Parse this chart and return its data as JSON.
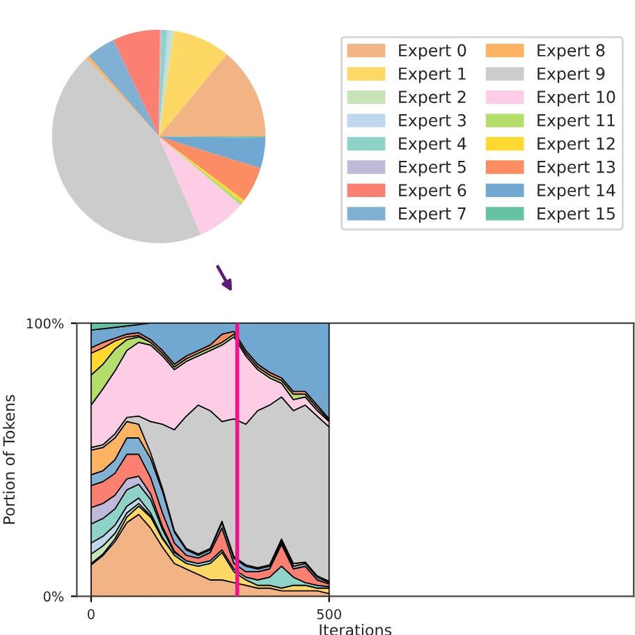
{
  "chart_data": [
    {
      "type": "pie",
      "categories": [
        "Expert 0",
        "Expert 1",
        "Expert 2",
        "Expert 3",
        "Expert 4",
        "Expert 5",
        "Expert 6",
        "Expert 7",
        "Expert 8",
        "Expert 9",
        "Expert 10",
        "Expert 11",
        "Expert 12",
        "Expert 13",
        "Expert 14",
        "Expert 15"
      ],
      "values": [
        14,
        8.7,
        0.5,
        0.5,
        0.9,
        0.2,
        7.2,
        4.4,
        0.5,
        44.6,
        7.4,
        0.5,
        0.4,
        5.4,
        4.6,
        0.2
      ],
      "colors": [
        "#f2b385",
        "#fdd865",
        "#c7e3b8",
        "#bdd7ee",
        "#8dd3c7",
        "#bebada",
        "#fb8072",
        "#80b1d3",
        "#fdb462",
        "#cccccc",
        "#fccde5",
        "#b3de69",
        "#ffd92f",
        "#fc8d62",
        "#70a8d1",
        "#66c2a5"
      ],
      "legend": "right"
    },
    {
      "type": "area",
      "stacked": true,
      "xlabel": "Iterations",
      "ylabel": "Portion of Tokens",
      "x": [
        0,
        25,
        50,
        75,
        100,
        125,
        150,
        175,
        200,
        225,
        250,
        275,
        300,
        325,
        350,
        375,
        400,
        425,
        450,
        475,
        500
      ],
      "xlim": [
        -30,
        1140
      ],
      "xticks": [
        0,
        500
      ],
      "ylim": [
        0,
        100
      ],
      "yticks": [
        {
          "value": 0,
          "label": "0%"
        },
        {
          "value": 100,
          "label": "100%"
        }
      ],
      "ref_lines": [
        {
          "axis": "x",
          "value": 307,
          "color": "#f0148c"
        }
      ],
      "series": [
        {
          "color": "#f2b385",
          "values": [
            11.5,
            15,
            20,
            27,
            30,
            25,
            18,
            12,
            10,
            8,
            6,
            6,
            5,
            4,
            3,
            3,
            2,
            2,
            2,
            2,
            1
          ]
        },
        {
          "color": "#fdd865",
          "values": [
            0.5,
            0.5,
            1,
            2,
            3,
            4,
            3,
            3,
            2,
            3,
            6,
            10,
            4,
            2,
            1,
            1,
            1,
            2,
            2,
            1,
            2
          ]
        },
        {
          "color": "#c7e3b8",
          "values": [
            3.5,
            3,
            2,
            1.5,
            1,
            0.5,
            null,
            null,
            null,
            null,
            null,
            null,
            null,
            null,
            null,
            null,
            null,
            null,
            null,
            null,
            null
          ]
        },
        {
          "color": "#bdd7ee",
          "values": [
            4,
            3.5,
            3,
            2.5,
            2,
            1,
            0.5,
            null,
            null,
            null,
            null,
            null,
            null,
            null,
            null,
            null,
            null,
            null,
            null,
            null,
            null
          ]
        },
        {
          "color": "#8dd3c7",
          "values": [
            7,
            6.5,
            6,
            6,
            5,
            5,
            3,
            1,
            1,
            1,
            1,
            1,
            1,
            1,
            2,
            3,
            8,
            3,
            1,
            1,
            0.5
          ]
        },
        {
          "color": "#bebada",
          "values": [
            6,
            5.5,
            5,
            4,
            3,
            2,
            1,
            0.5,
            null,
            null,
            null,
            null,
            null,
            null,
            null,
            null,
            null,
            null,
            null,
            null,
            null
          ]
        },
        {
          "color": "#fb8072",
          "values": [
            8,
            8,
            8,
            9,
            8,
            6,
            5,
            3,
            2,
            2,
            3,
            8,
            2,
            2,
            3,
            3,
            8,
            3,
            6,
            2,
            1
          ]
        },
        {
          "color": "#80b1d3",
          "values": [
            4,
            4,
            5,
            6,
            6,
            7,
            8,
            4,
            2,
            1,
            1,
            2,
            2,
            2,
            1,
            1,
            1,
            1,
            1,
            1,
            0.5
          ]
        },
        {
          "color": "#fdb462",
          "values": [
            9,
            8.5,
            8,
            6,
            5,
            2,
            1,
            0.5,
            0.5,
            0.5,
            0.5,
            0.5,
            0.5,
            0.5,
            0.5,
            0.5,
            1,
            1,
            0.5,
            0.5,
            0.5
          ]
        },
        {
          "color": "#cccccc",
          "values": [
            1,
            1,
            1.5,
            1.5,
            3,
            11.5,
            23.5,
            37,
            48.5,
            54.5,
            50.5,
            36.5,
            50.5,
            51.5,
            57.5,
            58.5,
            52,
            56,
            57.5,
            58.5,
            56.5
          ]
        },
        {
          "color": "#fccde5",
          "values": [
            15.5,
            20.5,
            23,
            24.5,
            27,
            28,
            25,
            22,
            20,
            18,
            22,
            28,
            30,
            25,
            15,
            10,
            5,
            4,
            3,
            2,
            2
          ]
        },
        {
          "color": "#b3de69",
          "values": [
            11,
            9,
            8,
            4,
            2,
            1,
            1,
            1,
            1,
            1,
            1,
            1,
            1,
            1,
            1,
            1,
            1,
            2,
            1,
            1,
            0.5
          ]
        },
        {
          "color": "#ffd92f",
          "values": [
            8,
            6,
            3,
            1,
            0.5,
            null,
            null,
            null,
            null,
            null,
            null,
            null,
            null,
            null,
            null,
            null,
            null,
            null,
            null,
            null,
            null
          ]
        },
        {
          "color": "#fc8d62",
          "values": [
            2,
            2,
            1,
            1,
            1,
            1,
            1,
            1,
            1,
            1,
            1,
            3,
            1,
            1,
            1,
            1,
            1,
            1,
            1,
            1,
            0.5
          ]
        },
        {
          "color": "#70a8d1",
          "values": [
            6.5,
            5,
            4,
            3,
            3,
            6,
            10,
            15,
            12,
            10,
            8,
            4,
            3,
            10,
            15,
            18,
            20,
            25,
            25,
            30,
            35
          ]
        },
        {
          "color": "#66c2a5",
          "values": [
            2.5,
            2,
            1.5,
            1,
            0.5,
            null,
            null,
            null,
            null,
            null,
            null,
            null,
            null,
            null,
            null,
            null,
            null,
            null,
            null,
            null,
            null
          ]
        }
      ]
    }
  ]
}
